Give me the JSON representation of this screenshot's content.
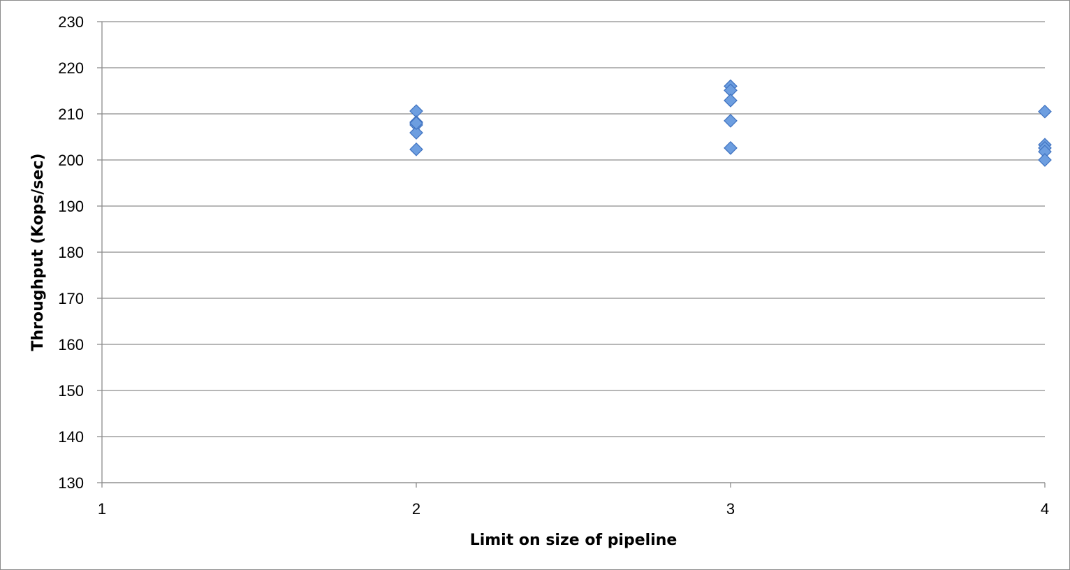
{
  "chart_data": {
    "type": "scatter",
    "title": "",
    "xlabel": "Limit on size of pipeline",
    "ylabel": "Throughput (Kops/sec)",
    "xlim": [
      1,
      4
    ],
    "ylim": [
      130,
      230
    ],
    "x_ticks": [
      "1",
      "2",
      "3",
      "4"
    ],
    "y_ticks": [
      "130",
      "140",
      "150",
      "160",
      "170",
      "180",
      "190",
      "200",
      "210",
      "220",
      "230"
    ],
    "grid": "horizontal",
    "legend": "none",
    "marker": "diamond",
    "marker_color": "#6d9ee0",
    "marker_edge_color": "#3f72c0",
    "series": [
      {
        "x": [
          2,
          2,
          2,
          2,
          2,
          2,
          3,
          3,
          3,
          3,
          3,
          4,
          4,
          4,
          4,
          4
        ],
        "y": [
          210.6,
          208.2,
          207.6,
          205.9,
          202.3,
          208.0,
          216.0,
          215.1,
          212.9,
          208.5,
          202.6,
          210.5,
          203.3,
          202.6,
          201.8,
          200.0
        ]
      }
    ]
  }
}
